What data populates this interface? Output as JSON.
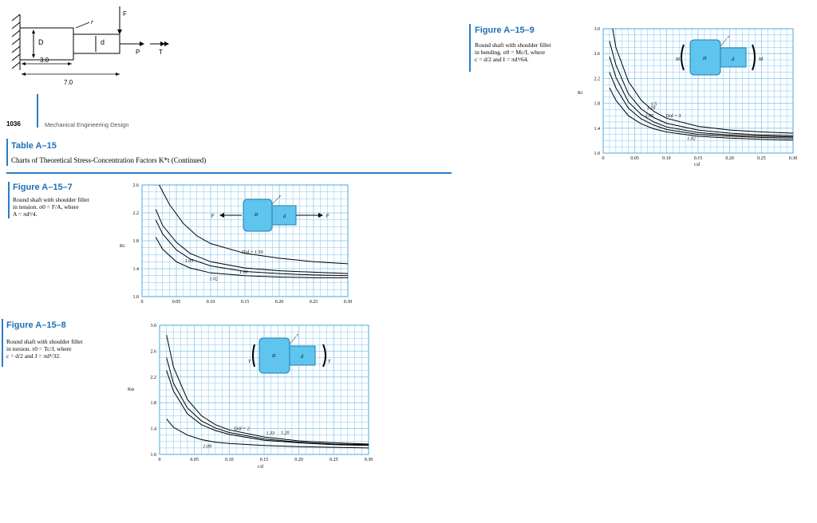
{
  "sketch": {
    "labels": {
      "F": "F",
      "r": "r",
      "D": "D",
      "d": "d",
      "P": "P",
      "T": "T",
      "len_short": "3.0",
      "len_long": "7.0"
    }
  },
  "page_footer": {
    "page_number": "1036",
    "book_title": "Mechanical Engineering Design"
  },
  "table_header": {
    "label": "Table A–15",
    "title": "Charts of Theoretical Stress-Concentration Factors K*t (Continued)"
  },
  "figures": [
    {
      "id": "Figure A–15–7",
      "caption": [
        "Round shaft with shoulder fillet",
        "in tension. σ0 = F/A, where",
        "A = πd²/4."
      ],
      "chart_data": {
        "type": "line",
        "ylabel": "Kt",
        "xlabel": "",
        "xlim": [
          0,
          0.3
        ],
        "ylim": [
          1.0,
          2.6
        ],
        "xticks": [
          "0",
          "0.05",
          "0.10",
          "0.15",
          "0.20",
          "0.25",
          "0.30"
        ],
        "yticks": [
          "1.0",
          "1.4",
          "1.8",
          "2.2",
          "2.6"
        ],
        "series": [
          {
            "name": "D/d = 1.50",
            "x": [
              0.025,
              0.04,
              0.06,
              0.08,
              0.1,
              0.15,
              0.2,
              0.25,
              0.3
            ],
            "y": [
              2.6,
              2.32,
              2.05,
              1.87,
              1.76,
              1.62,
              1.55,
              1.5,
              1.47
            ]
          },
          {
            "name": "1.10",
            "x": [
              0.02,
              0.03,
              0.05,
              0.07,
              0.1,
              0.15,
              0.2,
              0.25,
              0.3
            ],
            "y": [
              2.25,
              2.02,
              1.78,
              1.62,
              1.5,
              1.41,
              1.37,
              1.35,
              1.33
            ]
          },
          {
            "name": "1.05",
            "x": [
              0.02,
              0.03,
              0.05,
              0.07,
              0.1,
              0.15,
              0.2,
              0.25,
              0.3
            ],
            "y": [
              2.1,
              1.9,
              1.67,
              1.54,
              1.44,
              1.36,
              1.33,
              1.31,
              1.3
            ]
          },
          {
            "name": "1.02",
            "x": [
              0.02,
              0.03,
              0.05,
              0.07,
              0.1,
              0.15,
              0.2,
              0.25,
              0.3
            ],
            "y": [
              1.85,
              1.68,
              1.5,
              1.41,
              1.34,
              1.3,
              1.28,
              1.27,
              1.27
            ]
          }
        ],
        "annotations": [
          "D/d = 1.50",
          "1.10",
          "1.05",
          "1.02"
        ],
        "grid": true
      },
      "sketch_labels": {
        "F_left": "F",
        "F_right": "F",
        "D": "D",
        "d": "d",
        "r": "r"
      }
    },
    {
      "id": "Figure A–15–8",
      "caption": [
        "Round shaft with shoulder fillet",
        "in torsion. τ0 = Tc/J, where",
        "c = d/2 and J = πd⁴/32."
      ],
      "chart_data": {
        "type": "line",
        "ylabel": "Kts",
        "xlabel": "r/d",
        "xlim": [
          0,
          0.3
        ],
        "ylim": [
          1.0,
          3.0
        ],
        "xticks": [
          "0",
          "0.05",
          "0.10",
          "0.15",
          "0.20",
          "0.25",
          "0.30"
        ],
        "yticks": [
          "1.0",
          "1.4",
          "1.8",
          "2.2",
          "2.6",
          "3.0"
        ],
        "series": [
          {
            "name": "D/d = 2",
            "x": [
              0.01,
              0.02,
              0.04,
              0.06,
              0.08,
              0.1,
              0.15,
              0.2,
              0.25,
              0.3
            ],
            "y": [
              2.85,
              2.35,
              1.85,
              1.6,
              1.46,
              1.38,
              1.27,
              1.21,
              1.18,
              1.16
            ]
          },
          {
            "name": "1.33",
            "x": [
              0.01,
              0.02,
              0.04,
              0.06,
              0.08,
              0.1,
              0.15,
              0.2,
              0.25,
              0.3
            ],
            "y": [
              2.5,
              2.1,
              1.72,
              1.52,
              1.41,
              1.34,
              1.24,
              1.19,
              1.16,
              1.15
            ]
          },
          {
            "name": "1.20",
            "x": [
              0.01,
              0.02,
              0.04,
              0.06,
              0.08,
              0.1,
              0.15,
              0.2,
              0.25,
              0.3
            ],
            "y": [
              2.3,
              1.98,
              1.63,
              1.46,
              1.37,
              1.31,
              1.22,
              1.18,
              1.15,
              1.14
            ]
          },
          {
            "name": "1.09",
            "x": [
              0.01,
              0.02,
              0.04,
              0.06,
              0.08,
              0.1,
              0.15,
              0.2,
              0.25,
              0.3
            ],
            "y": [
              1.55,
              1.42,
              1.3,
              1.23,
              1.19,
              1.17,
              1.14,
              1.12,
              1.11,
              1.1
            ]
          }
        ],
        "annotations": [
          "D/d = 2",
          "1.20",
          "1.33",
          "1.09"
        ],
        "grid": true
      },
      "sketch_labels": {
        "T_left": "T",
        "T_right": "T",
        "D": "D",
        "d": "d",
        "r": "r"
      }
    },
    {
      "id": "Figure A–15–9",
      "caption": [
        "Round shaft with shoulder fillet",
        "in bending. σ0 = Mc/I, where",
        "c = d/2 and I = πd⁴/64."
      ],
      "chart_data": {
        "type": "line",
        "ylabel": "Kt",
        "xlabel": "r/d",
        "xlim": [
          0,
          0.3
        ],
        "ylim": [
          1.0,
          3.0
        ],
        "xticks": [
          "0",
          "0.05",
          "0.10",
          "0.15",
          "0.20",
          "0.25",
          "0.30"
        ],
        "yticks": [
          "1.0",
          "1.4",
          "1.8",
          "2.2",
          "2.6",
          "3.0"
        ],
        "series": [
          {
            "name": "D/d = 3",
            "x": [
              0.015,
              0.02,
              0.04,
              0.06,
              0.08,
              0.1,
              0.15,
              0.2,
              0.25,
              0.3
            ],
            "y": [
              3.0,
              2.7,
              2.15,
              1.85,
              1.67,
              1.56,
              1.43,
              1.37,
              1.34,
              1.32
            ]
          },
          {
            "name": "1.5",
            "x": [
              0.01,
              0.02,
              0.04,
              0.06,
              0.08,
              0.1,
              0.15,
              0.2,
              0.25,
              0.3
            ],
            "y": [
              2.8,
              2.42,
              1.95,
              1.71,
              1.57,
              1.48,
              1.37,
              1.32,
              1.29,
              1.28
            ]
          },
          {
            "name": "1.10",
            "x": [
              0.01,
              0.02,
              0.04,
              0.06,
              0.08,
              0.1,
              0.15,
              0.2,
              0.25,
              0.3
            ],
            "y": [
              2.55,
              2.22,
              1.82,
              1.62,
              1.5,
              1.42,
              1.33,
              1.29,
              1.27,
              1.26
            ]
          },
          {
            "name": "1.05",
            "x": [
              0.01,
              0.02,
              0.04,
              0.06,
              0.08,
              0.1,
              0.15,
              0.2,
              0.25,
              0.3
            ],
            "y": [
              2.3,
              2.05,
              1.72,
              1.55,
              1.45,
              1.38,
              1.3,
              1.27,
              1.25,
              1.24
            ]
          },
          {
            "name": "1.02",
            "x": [
              0.01,
              0.02,
              0.04,
              0.06,
              0.08,
              0.1,
              0.15,
              0.2,
              0.25,
              0.3
            ],
            "y": [
              2.05,
              1.85,
              1.6,
              1.47,
              1.39,
              1.34,
              1.27,
              1.24,
              1.22,
              1.21
            ]
          }
        ],
        "annotations": [
          "D/d = 3",
          "1.5",
          "1.10",
          "1.05",
          "1.02"
        ],
        "grid": true
      },
      "sketch_labels": {
        "M_left": "M",
        "M_right": "M",
        "D": "D",
        "d": "d",
        "r": "r"
      }
    }
  ]
}
